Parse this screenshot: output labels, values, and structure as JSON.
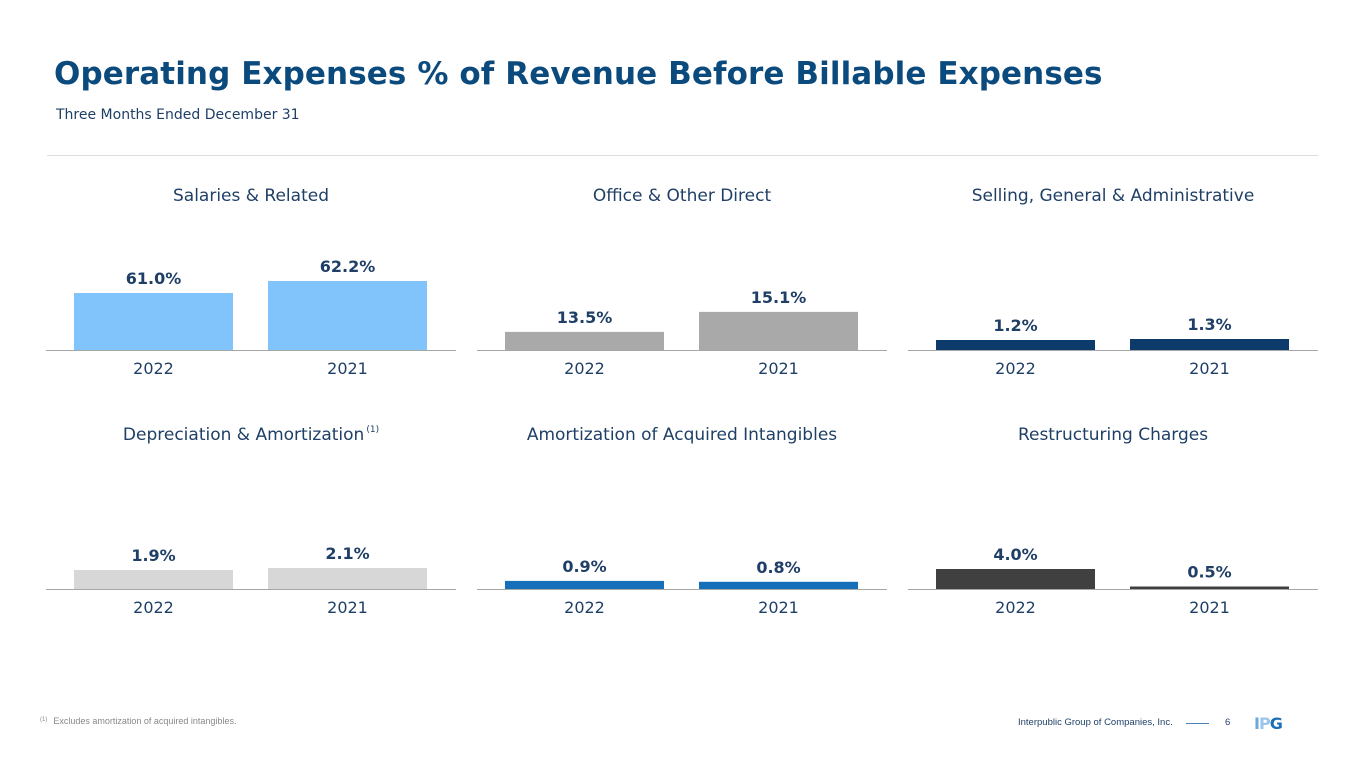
{
  "header": {
    "title": "Operating Expenses % of Revenue Before Billable Expenses",
    "subtitle": "Three Months Ended December 31"
  },
  "chart_data": [
    {
      "type": "bar",
      "title": "Salaries & Related",
      "title_footnote": "",
      "categories": [
        "2022",
        "2021"
      ],
      "values": [
        61.0,
        62.2
      ],
      "labels": [
        "61.0%",
        "62.2%"
      ],
      "color": "#80c4fb",
      "xlabel": "",
      "ylabel": "",
      "grid": false
    },
    {
      "type": "bar",
      "title": "Office & Other Direct",
      "title_footnote": "",
      "categories": [
        "2022",
        "2021"
      ],
      "values": [
        13.5,
        15.1
      ],
      "labels": [
        "13.5%",
        "15.1%"
      ],
      "color": "#a9a9a9",
      "xlabel": "",
      "ylabel": "",
      "grid": false
    },
    {
      "type": "bar",
      "title": "Selling, General & Administrative",
      "title_footnote": "",
      "categories": [
        "2022",
        "2021"
      ],
      "values": [
        1.2,
        1.3
      ],
      "labels": [
        "1.2%",
        "1.3%"
      ],
      "color": "#0b3a6b",
      "xlabel": "",
      "ylabel": "",
      "grid": false
    },
    {
      "type": "bar",
      "title": "Depreciation & Amortization",
      "title_footnote": "(1)",
      "categories": [
        "2022",
        "2021"
      ],
      "values": [
        1.9,
        2.1
      ],
      "labels": [
        "1.9%",
        "2.1%"
      ],
      "color": "#d7d7d7",
      "xlabel": "",
      "ylabel": "",
      "grid": false
    },
    {
      "type": "bar",
      "title": "Amortization of Acquired Intangibles",
      "title_footnote": "",
      "categories": [
        "2022",
        "2021"
      ],
      "values": [
        0.9,
        0.8
      ],
      "labels": [
        "0.9%",
        "0.8%"
      ],
      "color": "#1670b9",
      "xlabel": "",
      "ylabel": "",
      "grid": false
    },
    {
      "type": "bar",
      "title": "Restructuring Charges",
      "title_footnote": "",
      "categories": [
        "2022",
        "2021"
      ],
      "values": [
        4.0,
        0.5
      ],
      "labels": [
        "4.0%",
        "0.5%"
      ],
      "color": "#404040",
      "xlabel": "",
      "ylabel": "",
      "grid": false
    }
  ],
  "footer": {
    "footnote_marker": "(1)",
    "footnote_text": "Excludes amortization of acquired intangibles.",
    "company": "Interpublic Group of Companies, Inc.",
    "page_number": "6",
    "logo": [
      "I",
      "P",
      "G"
    ]
  }
}
